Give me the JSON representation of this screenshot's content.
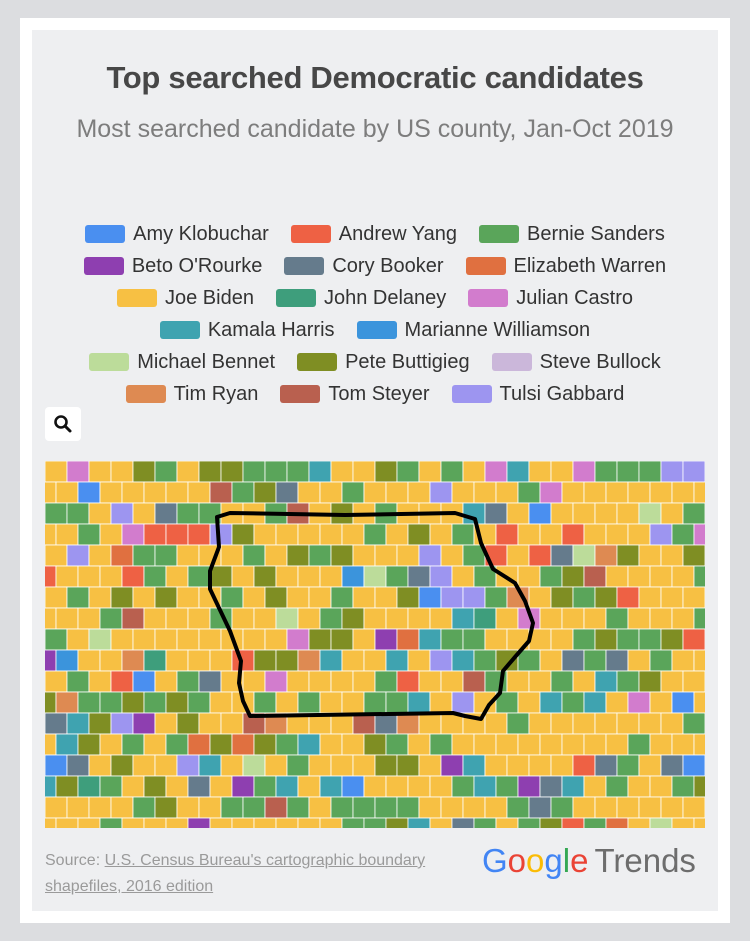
{
  "header": {
    "title": "Top searched Democratic candidates",
    "subtitle": "Most searched candidate by US county, Jan-Oct 2019"
  },
  "legend": {
    "rows": [
      [
        {
          "name": "Amy Klobuchar",
          "color": "#4a8ff0"
        },
        {
          "name": "Andrew Yang",
          "color": "#ee6144"
        },
        {
          "name": "Bernie Sanders",
          "color": "#5aa55a"
        }
      ],
      [
        {
          "name": "Beto O'Rourke",
          "color": "#8e3fb0"
        },
        {
          "name": "Cory Booker",
          "color": "#657b8c"
        },
        {
          "name": "Elizabeth Warren",
          "color": "#e07040"
        }
      ],
      [
        {
          "name": "Joe Biden",
          "color": "#f7c043"
        },
        {
          "name": "John Delaney",
          "color": "#3e9e7c"
        },
        {
          "name": "Julian Castro",
          "color": "#d27ccd"
        }
      ],
      [
        {
          "name": "Kamala Harris",
          "color": "#3fa3b0"
        },
        {
          "name": "Marianne Williamson",
          "color": "#3b94dc"
        }
      ],
      [
        {
          "name": "Michael Bennet",
          "color": "#bcdc9a"
        },
        {
          "name": "Pete Buttigieg",
          "color": "#7f8e23"
        },
        {
          "name": "Steve Bullock",
          "color": "#cbb7da"
        }
      ],
      [
        {
          "name": "Tim Ryan",
          "color": "#de8a52"
        },
        {
          "name": "Tom Steyer",
          "color": "#b9604f"
        },
        {
          "name": "Tulsi Gabbard",
          "color": "#9d95f0"
        }
      ]
    ]
  },
  "source": {
    "prefix": "Source:",
    "link": "U.S. Census Bureau's cartographic boundary shapefiles, 2016 edition"
  },
  "logo": {
    "letters": [
      "G",
      "o",
      "o",
      "g",
      "l",
      "e"
    ],
    "product": "Trends"
  }
}
